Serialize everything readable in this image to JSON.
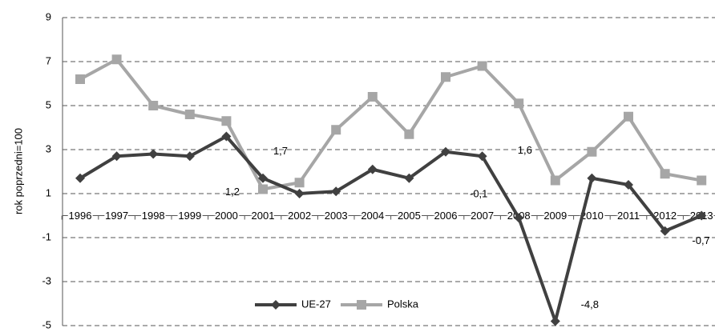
{
  "chart_data": {
    "type": "line",
    "y_label": "rok poprzedni=100",
    "categories": [
      "1996",
      "1997",
      "1998",
      "1999",
      "2000",
      "2001",
      "2002",
      "2003",
      "2004",
      "2005",
      "2006",
      "2007",
      "2008",
      "2009",
      "2010",
      "2011",
      "2012",
      "2013"
    ],
    "series": [
      {
        "name": "UE-27",
        "color": "#404040",
        "marker": "diamond",
        "values": [
          1.7,
          2.7,
          2.8,
          2.7,
          3.6,
          1.7,
          1.0,
          1.1,
          2.1,
          1.7,
          2.9,
          2.7,
          -0.1,
          -4.8,
          1.7,
          1.4,
          -0.7,
          0.0
        ],
        "value_labels": [
          null,
          null,
          null,
          null,
          null,
          "1,7",
          null,
          null,
          null,
          null,
          null,
          null,
          "-0,1",
          "-4,8",
          null,
          null,
          "-0,7",
          null
        ]
      },
      {
        "name": "Polska",
        "color": "#a6a6a6",
        "marker": "square",
        "values": [
          6.2,
          7.1,
          5.0,
          4.6,
          4.3,
          1.2,
          1.5,
          3.9,
          5.4,
          3.7,
          6.3,
          6.8,
          5.1,
          1.6,
          2.9,
          4.5,
          1.9,
          1.6
        ],
        "value_labels": [
          null,
          null,
          null,
          null,
          null,
          "1,2",
          null,
          null,
          null,
          null,
          null,
          null,
          null,
          "1,6",
          null,
          null,
          null,
          null
        ]
      }
    ],
    "ylim": [
      -5,
      9
    ],
    "yticks": [
      -5,
      -3,
      -1,
      1,
      3,
      5,
      7,
      9
    ],
    "grid": true
  }
}
